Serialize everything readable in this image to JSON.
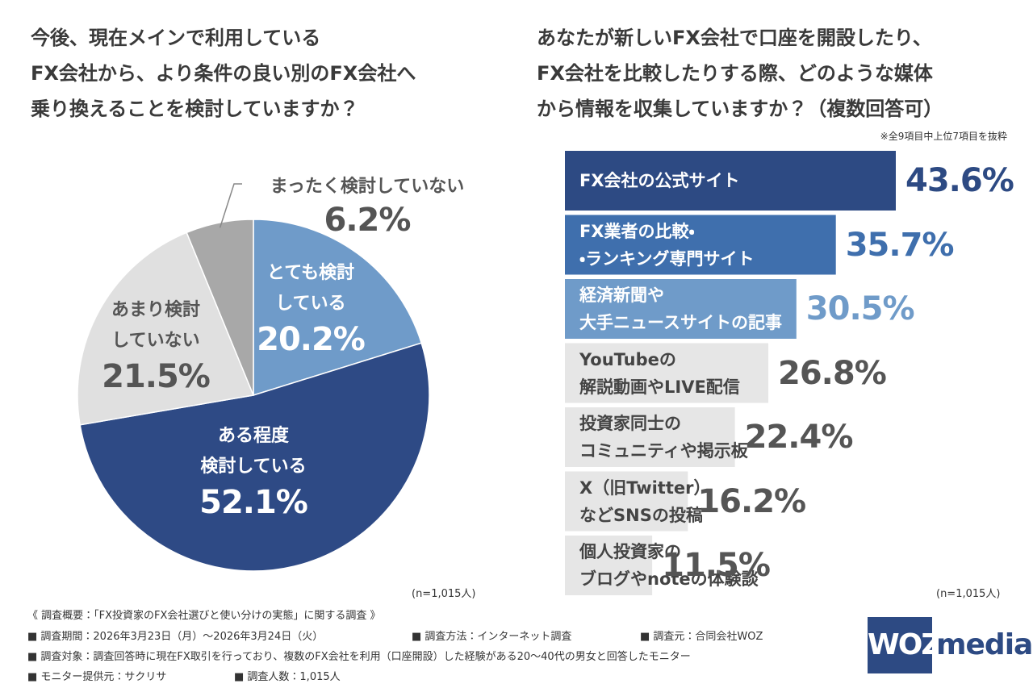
{
  "chart_data": [
    {
      "type": "pie",
      "title": "今後、現在メインで利用している\nFX会社から、より条件の良い別のFX会社へ\n乗り換えることを検討していますか？",
      "categories": [
        "とても検討\nしている",
        "ある程度\n検討している",
        "あまり検討\nしていない",
        "まったく検討していない"
      ],
      "values": [
        20.2,
        52.1,
        21.5,
        6.2
      ],
      "value_labels": [
        "20.2%",
        "52.1%",
        "21.5%",
        "6.2%"
      ],
      "colors": [
        "#6f9bc9",
        "#2e4a85",
        "#e0e0e0",
        "#a8a8a8"
      ],
      "sample": "(n=1,015人)"
    },
    {
      "type": "bar",
      "title": "あなたが新しいFX会社で口座を開設したり、\nFX会社を比較したりする際、どのような媒体\nから情報を収集していますか？（複数回答可）",
      "note": "※全9項目中上位7項目を抜粋",
      "categories": [
        "FX会社の公式サイト",
        "FX業者の比較・\n・ランキング専門サイト",
        "経済新聞や\n大手ニュースサイトの記事",
        "YouTubeの\n解説動画やLIVE配信",
        "投資家同士の\nコミュニティや掲示板",
        "X（旧Twitter）\nなどSNSの投稿",
        "個人投資家の\nブログやnoteの体験談"
      ],
      "values": [
        43.6,
        35.7,
        30.5,
        26.8,
        22.4,
        16.2,
        11.5
      ],
      "value_labels": [
        "43.6%",
        "35.7%",
        "30.5%",
        "26.8%",
        "22.4%",
        "16.2%",
        "11.5%"
      ],
      "colors": [
        "#2d4a83",
        "#3f6fad",
        "#6f9bc9",
        "#e6e6e6",
        "#e6e6e6",
        "#e6e6e6",
        "#e6e6e6"
      ],
      "sample": "(n=1,015人)"
    }
  ],
  "survey": {
    "heading": "《 調査概要：「FX投資家のFX会社選びと使い分けの実態」に関する調査 》",
    "items": [
      "■ 調査期間：2026年3月23日（月）～2026年3月24日（火）",
      "■ 調査方法：インターネット調査",
      "■ 調査元：合同会社WOZ",
      "■ 調査対象：調査回答時に現在FX取引を行っており、複数のFX会社を利用（口座開設）した経験がある20～40代の男女と回答したモニター",
      "■ モニター提供元：サクリサ",
      "■ 調査人数：1,015人"
    ]
  },
  "logo": {
    "mark": "WOZ",
    "word": "media"
  }
}
